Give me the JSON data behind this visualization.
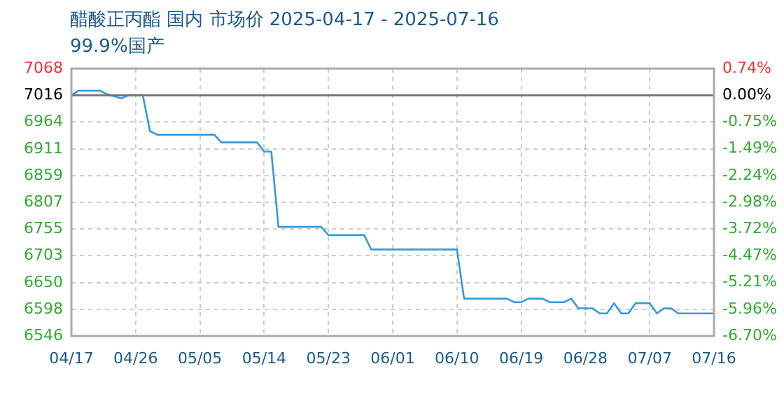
{
  "chart_data": {
    "type": "line",
    "title": "醋酸正丙酯 国内 市场价 2025-04-17 - 2025-07-16",
    "subtitle": "99.9%国产",
    "x": [
      "2025-04-17",
      "2025-04-18",
      "2025-04-21",
      "2025-04-22",
      "2025-04-24",
      "2025-04-25",
      "2025-04-27",
      "2025-04-28",
      "2025-04-29",
      "2025-05-07",
      "2025-05-08",
      "2025-05-13",
      "2025-05-14",
      "2025-05-15",
      "2025-05-16",
      "2025-05-22",
      "2025-05-23",
      "2025-05-28",
      "2025-05-29",
      "2025-06-10",
      "2025-06-11",
      "2025-06-17",
      "2025-06-18",
      "2025-06-19",
      "2025-06-20",
      "2025-06-22",
      "2025-06-23",
      "2025-06-25",
      "2025-06-26",
      "2025-06-27",
      "2025-06-29",
      "2025-06-30",
      "2025-07-01",
      "2025-07-02",
      "2025-07-03",
      "2025-07-04",
      "2025-07-05",
      "2025-07-07",
      "2025-07-08",
      "2025-07-09",
      "2025-07-10",
      "2025-07-11",
      "2025-07-16"
    ],
    "series": [
      {
        "color": "#3399dd",
        "values": [
          7016,
          7025,
          7025,
          7018,
          7010,
          7016,
          7016,
          6946,
          6939,
          6939,
          6924,
          6924,
          6906,
          6906,
          6759,
          6759,
          6743,
          6743,
          6715,
          6715,
          6619,
          6619,
          6612,
          6612,
          6619,
          6619,
          6612,
          6612,
          6619,
          6600,
          6600,
          6590,
          6590,
          6610,
          6590,
          6590,
          6610,
          6610,
          6590,
          6600,
          6600,
          6590,
          6590
        ]
      }
    ],
    "xlim": [
      "2025-04-17",
      "2025-07-16"
    ],
    "xticks": [
      {
        "value": "2025-04-17",
        "label": "04/17"
      },
      {
        "value": "2025-04-26",
        "label": "04/26"
      },
      {
        "value": "2025-05-05",
        "label": "05/05"
      },
      {
        "value": "2025-05-14",
        "label": "05/14"
      },
      {
        "value": "2025-05-23",
        "label": "05/23"
      },
      {
        "value": "2025-06-01",
        "label": "06/01"
      },
      {
        "value": "2025-06-10",
        "label": "06/10"
      },
      {
        "value": "2025-06-19",
        "label": "06/19"
      },
      {
        "value": "2025-06-28",
        "label": "06/28"
      },
      {
        "value": "2025-07-07",
        "label": "07/07"
      },
      {
        "value": "2025-07-16",
        "label": "07/16"
      }
    ],
    "ylim": [
      6546,
      7068
    ],
    "yticks": [
      6546,
      6598,
      6650,
      6703,
      6755,
      6807,
      6859,
      6911,
      6964,
      7016,
      7068
    ],
    "y2lim": [
      -6.7,
      0.74
    ],
    "y2ticks": [
      {
        "value": -6.7,
        "label": "-6.70%"
      },
      {
        "value": -5.96,
        "label": "-5.96%"
      },
      {
        "value": -5.21,
        "label": "-5.21%"
      },
      {
        "value": -4.47,
        "label": "-4.47%"
      },
      {
        "value": -3.72,
        "label": "-3.72%"
      },
      {
        "value": -2.98,
        "label": "-2.98%"
      },
      {
        "value": -2.24,
        "label": "-2.24%"
      },
      {
        "value": -1.49,
        "label": "-1.49%"
      },
      {
        "value": -0.75,
        "label": "-0.75%"
      },
      {
        "value": 0.0,
        "label": "0.00%"
      },
      {
        "value": 0.74,
        "label": "0.74%"
      }
    ],
    "ref_lines": [
      {
        "axis": "y",
        "value": 7016,
        "color": "#777777"
      }
    ],
    "grid": true,
    "legend": false,
    "marker": "none",
    "line_style": "solid"
  }
}
